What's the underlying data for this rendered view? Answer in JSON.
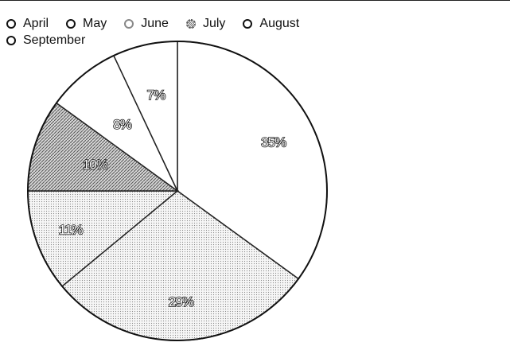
{
  "chart_data": {
    "type": "pie",
    "categories": [
      "April",
      "May",
      "June",
      "July",
      "August",
      "September"
    ],
    "values": [
      35,
      29,
      11,
      10,
      8,
      7
    ],
    "labels": [
      "35%",
      "29%",
      "11%",
      "10%",
      "8%",
      "7%"
    ],
    "legend": {
      "placement": "top-left",
      "entries": [
        "April",
        "May",
        "June",
        "July",
        "August",
        "September"
      ]
    },
    "colors": [
      "#ffffff",
      "#e4e4e4",
      "#ededed",
      "#9a9a9a",
      "#ffffff",
      "#ffffff"
    ]
  }
}
